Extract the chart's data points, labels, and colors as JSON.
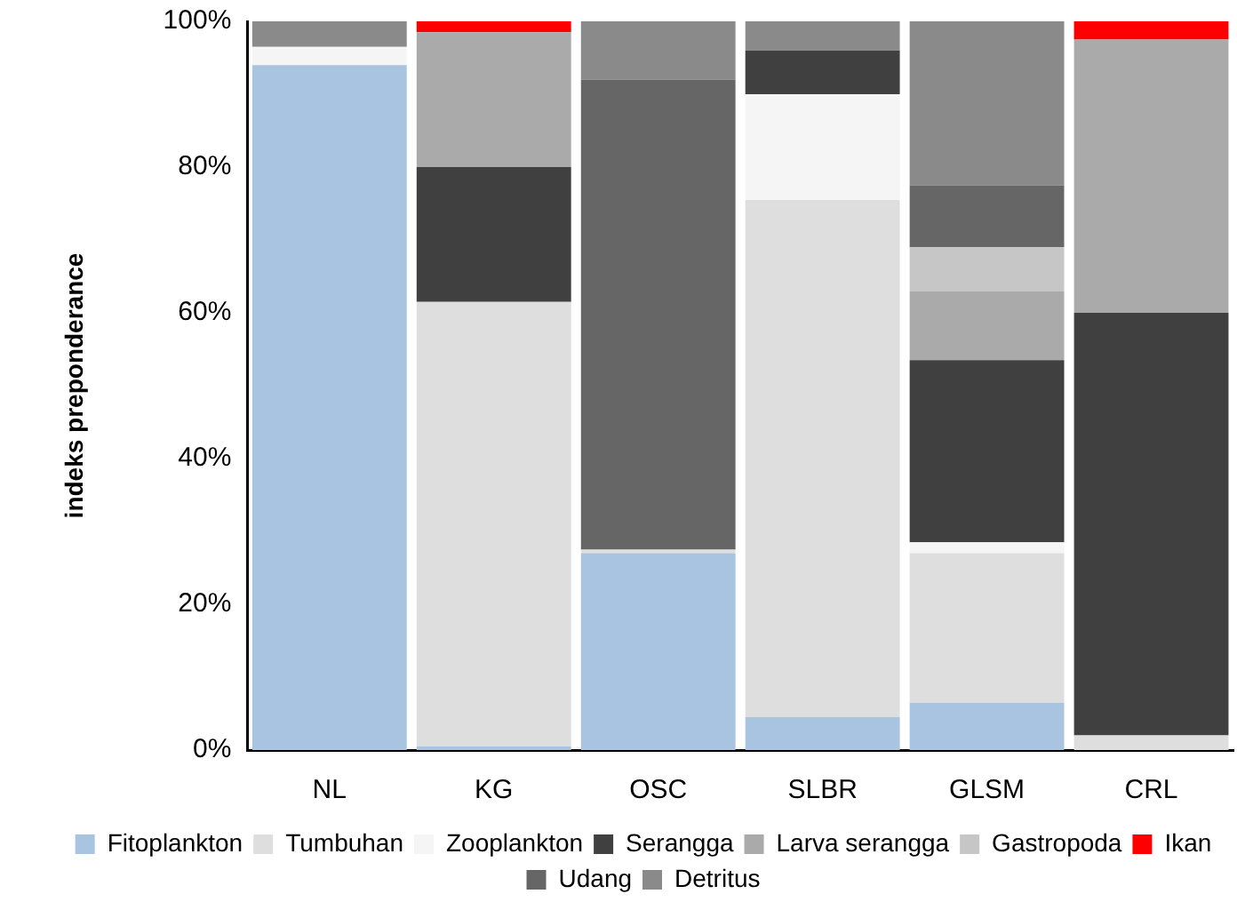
{
  "chart_data": {
    "type": "bar",
    "stacked": true,
    "ylabel": "indeks preponderance",
    "categories": [
      "NL",
      "KG",
      "OSC",
      "SLBR",
      "GLSM",
      "CRL"
    ],
    "ylim": [
      0,
      100
    ],
    "yticks": [
      {
        "value": 0,
        "label": "0%"
      },
      {
        "value": 20,
        "label": "20%"
      },
      {
        "value": 40,
        "label": "40%"
      },
      {
        "value": 60,
        "label": "60%"
      },
      {
        "value": 80,
        "label": "80%"
      },
      {
        "value": 100,
        "label": "100%"
      }
    ],
    "grid": false,
    "legend": "bottom",
    "series": [
      {
        "name": "Fitoplankton",
        "color": "#a9c4e0",
        "values": [
          94,
          0.5,
          27,
          4.5,
          6.5,
          0
        ]
      },
      {
        "name": "Tumbuhan",
        "color": "#dedede",
        "values": [
          0,
          61,
          0.5,
          71,
          20.5,
          2
        ]
      },
      {
        "name": "Zooplankton",
        "color": "#f5f5f5",
        "values": [
          2.5,
          0,
          0,
          14.5,
          1.5,
          0
        ]
      },
      {
        "name": "Serangga",
        "color": "#404040",
        "values": [
          0,
          18.5,
          0,
          6,
          25,
          58
        ]
      },
      {
        "name": "Larva serangga",
        "color": "#aaaaaa",
        "values": [
          0,
          18.5,
          0,
          0,
          9.5,
          37.5
        ]
      },
      {
        "name": "Gastropoda",
        "color": "#c6c6c6",
        "values": [
          0,
          0,
          0,
          0,
          6,
          0
        ]
      },
      {
        "name": "Ikan",
        "color": "#ff0000",
        "values": [
          0,
          1.5,
          0,
          0,
          0,
          2.5
        ]
      },
      {
        "name": "Udang",
        "color": "#666666",
        "values": [
          0,
          0,
          64.5,
          0,
          8.5,
          0
        ]
      },
      {
        "name": "Detritus",
        "color": "#8a8a8a",
        "values": [
          3.5,
          0,
          8,
          4,
          22.5,
          0
        ]
      }
    ]
  }
}
